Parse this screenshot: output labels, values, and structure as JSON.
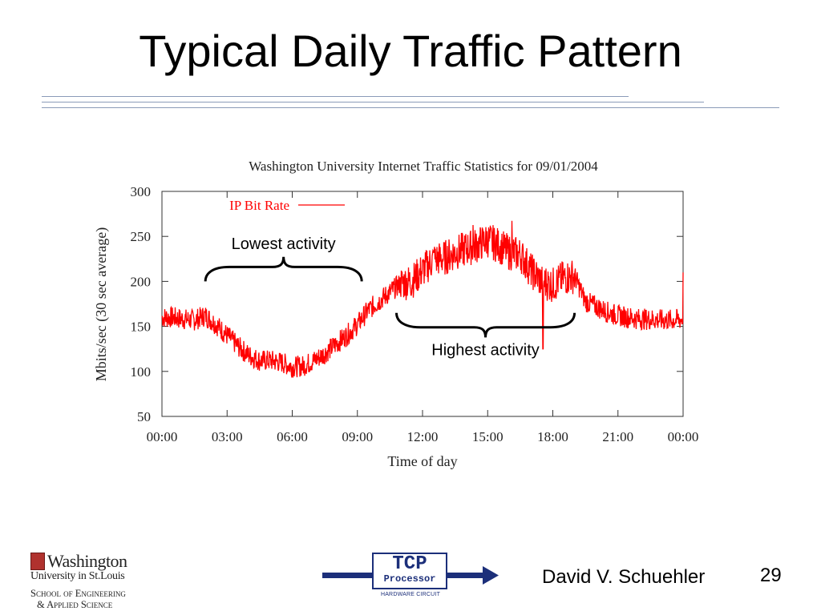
{
  "slide": {
    "title": "Typical Daily Traffic Pattern",
    "author": "David V. Schuehler",
    "page_number": "29"
  },
  "logo": {
    "name": "Washington",
    "university": "University in St.Louis",
    "school_line1": "School of Engineering",
    "school_line2": "& Applied Science"
  },
  "tcp_logo": {
    "main": "TCP",
    "sub": "Processor",
    "caption": "HARDWARE CIRCUIT"
  },
  "colors": {
    "series": "#ff0000",
    "rule": "#8a9bb8",
    "tcp": "#1c2f7a"
  },
  "chart_data": {
    "type": "line",
    "title": "Washington University Internet Traffic Statistics for 09/01/2004",
    "xlabel": "Time of day",
    "ylabel": "Mbits/sec (30 sec average)",
    "ylim": [
      50,
      300
    ],
    "xlim": [
      0,
      24
    ],
    "yticks": [
      50,
      100,
      150,
      200,
      250,
      300
    ],
    "xticks": [
      0,
      3,
      6,
      9,
      12,
      15,
      18,
      21,
      24
    ],
    "xtick_labels": [
      "00:00",
      "03:00",
      "06:00",
      "09:00",
      "12:00",
      "15:00",
      "18:00",
      "21:00",
      "00:00"
    ],
    "legend_position": "top-left",
    "series": [
      {
        "name": "IP Bit Rate",
        "x": [
          0,
          0.5,
          1,
          1.5,
          2,
          2.5,
          3,
          3.5,
          4,
          4.5,
          5,
          5.5,
          6,
          6.5,
          7,
          7.5,
          8,
          8.5,
          9,
          9.5,
          10,
          10.5,
          11,
          11.5,
          12,
          12.5,
          13,
          13.5,
          14,
          14.5,
          15,
          15.5,
          16,
          16.5,
          17,
          17.5,
          18,
          18.5,
          19,
          19.5,
          20,
          20.5,
          21,
          21.5,
          22,
          22.5,
          23,
          23.5,
          24
        ],
        "values": [
          160,
          160,
          158,
          157,
          162,
          152,
          140,
          128,
          118,
          112,
          112,
          110,
          105,
          106,
          112,
          120,
          130,
          140,
          152,
          168,
          178,
          188,
          198,
          200,
          212,
          224,
          226,
          232,
          236,
          240,
          246,
          240,
          232,
          230,
          212,
          200,
          196,
          204,
          206,
          178,
          172,
          166,
          162,
          160,
          158,
          158,
          157,
          157,
          158
        ]
      }
    ],
    "annotations": [
      {
        "text": "Lowest activity",
        "x_start": 2,
        "x_end": 9.2,
        "y": 200,
        "side": "above"
      },
      {
        "text": "Highest activity",
        "x_start": 10.8,
        "x_end": 19,
        "y": 165,
        "side": "below"
      }
    ]
  }
}
